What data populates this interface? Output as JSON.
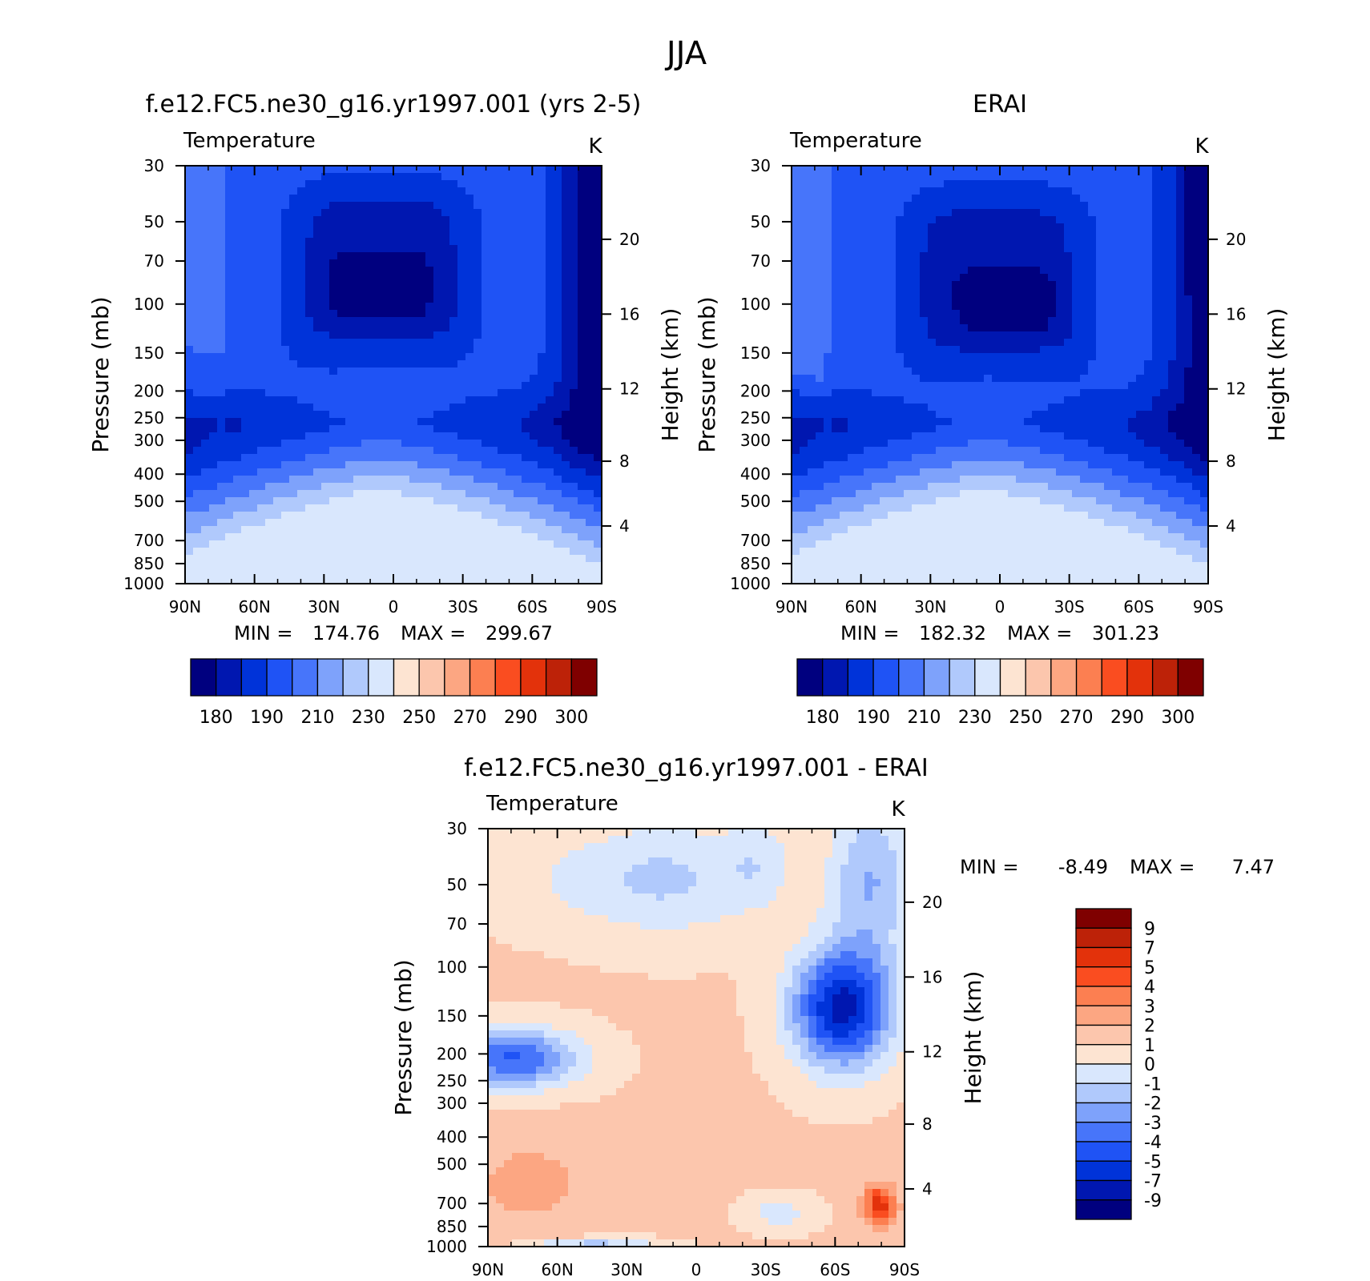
{
  "figure": {
    "title": "JJA"
  },
  "palettes": {
    "abs": [
      "#00007f",
      "#0017b0",
      "#0033d9",
      "#1f53f5",
      "#4775fa",
      "#7ea2fb",
      "#b0c9fc",
      "#d9e7fd",
      "#fde4d2",
      "#fcc6ad",
      "#fca682",
      "#fc7f51",
      "#fa4d20",
      "#e3320b",
      "#bd2208",
      "#7f0000"
    ],
    "diff": [
      "#7f0000",
      "#bd2208",
      "#e3320b",
      "#fa4d20",
      "#fc7f51",
      "#fca682",
      "#fcc6ad",
      "#fde4d2",
      "#d9e7fd",
      "#b0c9fc",
      "#7ea2fb",
      "#4775fa",
      "#1f53f5",
      "#0033d9",
      "#0017b0",
      "#00007f"
    ]
  },
  "chart_data": [
    {
      "type": "heatmap",
      "title": "f.e12.FC5.ne30_g16.yr1997.001 (yrs 2-5)",
      "subtitle": "Temperature",
      "units": "K",
      "xlabel": "",
      "ylabel": "Pressure (mb)",
      "ylabel_right": "Height (km)",
      "x_ticks": [
        "90N",
        "60N",
        "30N",
        "0",
        "30S",
        "60S",
        "90S"
      ],
      "y_ticks": [
        "30",
        "50",
        "70",
        "100",
        "150",
        "200",
        "250",
        "300",
        "400",
        "500",
        "700",
        "850",
        "1000"
      ],
      "y_ticks_right": [
        "20",
        "16",
        "12",
        "8",
        "4"
      ],
      "stats": {
        "min_label": "MIN =",
        "min": "174.76",
        "max_label": "MAX =",
        "max": "299.67"
      },
      "colorbar_labels": [
        "180",
        "190",
        "210",
        "230",
        "250",
        "270",
        "290",
        "300"
      ],
      "ylim": [
        1000,
        30
      ],
      "xlim": [
        90,
        -90
      ]
    },
    {
      "type": "heatmap",
      "title": "ERAI",
      "subtitle": "Temperature",
      "units": "K",
      "xlabel": "",
      "ylabel": "Pressure (mb)",
      "ylabel_right": "Height (km)",
      "x_ticks": [
        "90N",
        "60N",
        "30N",
        "0",
        "30S",
        "60S",
        "90S"
      ],
      "y_ticks": [
        "30",
        "50",
        "70",
        "100",
        "150",
        "200",
        "250",
        "300",
        "400",
        "500",
        "700",
        "850",
        "1000"
      ],
      "y_ticks_right": [
        "20",
        "16",
        "12",
        "8",
        "4"
      ],
      "stats": {
        "min_label": "MIN =",
        "min": "182.32",
        "max_label": "MAX =",
        "max": "301.23"
      },
      "colorbar_labels": [
        "180",
        "190",
        "210",
        "230",
        "250",
        "270",
        "290",
        "300"
      ],
      "ylim": [
        1000,
        30
      ],
      "xlim": [
        90,
        -90
      ]
    },
    {
      "type": "heatmap",
      "title": "f.e12.FC5.ne30_g16.yr1997.001 - ERAI",
      "subtitle": "Temperature",
      "units": "K",
      "xlabel": "",
      "ylabel": "Pressure (mb)",
      "ylabel_right": "Height (km)",
      "x_ticks": [
        "90N",
        "60N",
        "30N",
        "0",
        "30S",
        "60S",
        "90S"
      ],
      "y_ticks": [
        "30",
        "50",
        "70",
        "100",
        "150",
        "200",
        "250",
        "300",
        "400",
        "500",
        "700",
        "850",
        "1000"
      ],
      "y_ticks_right": [
        "20",
        "16",
        "12",
        "8",
        "4"
      ],
      "stats": {
        "min_label": "MIN =",
        "min": "-8.49",
        "max_label": "MAX =",
        "max": "7.47"
      },
      "colorbar_labels": [
        "9",
        "7",
        "5",
        "4",
        "3",
        "2",
        "1",
        "0",
        "-1",
        "-2",
        "-3",
        "-4",
        "-5",
        "-7",
        "-9"
      ],
      "ylim": [
        1000,
        30
      ],
      "xlim": [
        90,
        -90
      ]
    }
  ]
}
